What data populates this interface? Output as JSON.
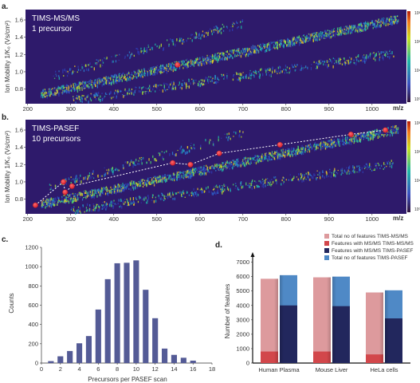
{
  "panels": {
    "a": {
      "letter": "a.",
      "title": "TIMS-MS/MS",
      "subtitle": "1 precursor",
      "xlabel": "m/z",
      "ylabel": "Ion Mobility 1/K₀ (Vs/cm²)",
      "x_ticks": [
        200,
        300,
        400,
        500,
        600,
        700,
        800,
        900,
        1000
      ],
      "y_ticks": [
        0.8,
        1.0,
        1.2,
        1.4,
        1.6
      ],
      "xlim": [
        195,
        1080
      ],
      "ylim": [
        0.63,
        1.72
      ],
      "colorbar_ticks": [
        "10³",
        "10²",
        "10¹",
        "10⁰"
      ],
      "precursors": [
        {
          "mz": 548,
          "im": 1.08
        }
      ]
    },
    "b": {
      "letter": "b.",
      "title": "TIMS-PASEF",
      "subtitle": "10 precursors",
      "xlabel": "m/z",
      "ylabel": "Ion Mobility 1/K₀ (Vs/cm²)",
      "x_ticks": [
        200,
        300,
        400,
        500,
        600,
        700,
        800,
        900,
        1000
      ],
      "y_ticks": [
        0.8,
        1.0,
        1.2,
        1.4,
        1.6
      ],
      "xlim": [
        195,
        1080
      ],
      "ylim": [
        0.63,
        1.72
      ],
      "colorbar_ticks": [
        "10³",
        "10²",
        "10¹",
        "10⁰"
      ],
      "precursors": [
        {
          "mz": 218,
          "im": 0.73
        },
        {
          "mz": 283,
          "im": 1.0
        },
        {
          "mz": 287,
          "im": 0.88
        },
        {
          "mz": 303,
          "im": 0.95
        },
        {
          "mz": 537,
          "im": 1.22
        },
        {
          "mz": 578,
          "im": 1.2
        },
        {
          "mz": 645,
          "im": 1.33
        },
        {
          "mz": 786,
          "im": 1.43
        },
        {
          "mz": 951,
          "im": 1.55
        },
        {
          "mz": 1031,
          "im": 1.6
        }
      ]
    },
    "c": {
      "letter": "c.",
      "type": "bar",
      "xlabel": "Precursors per PASEF scan",
      "ylabel": "Counts",
      "x": [
        1,
        2,
        3,
        4,
        5,
        6,
        7,
        8,
        9,
        10,
        11,
        12,
        13,
        14,
        15,
        16
      ],
      "values": [
        20,
        70,
        125,
        205,
        280,
        555,
        870,
        1035,
        1040,
        1065,
        760,
        465,
        150,
        85,
        55,
        25
      ],
      "x_ticks": [
        0,
        2,
        4,
        6,
        8,
        10,
        12,
        14,
        16,
        18
      ],
      "y_ticks": [
        0,
        200,
        400,
        600,
        800,
        1000,
        1200
      ],
      "xlim": [
        0,
        18
      ],
      "ylim": [
        0,
        1200
      ],
      "color": "#545b96"
    },
    "d": {
      "letter": "d.",
      "type": "bar",
      "ylabel": "Number of features",
      "categories": [
        "Human Plasma",
        "Mouse Liver",
        "HeLa cells"
      ],
      "series": [
        {
          "name": "Total no of features TIMS-MS/MS",
          "values": [
            5850,
            5950,
            4900
          ],
          "color": "#dd9a9d"
        },
        {
          "name": "Features with MS/MS TIMS-MS/MS",
          "values": [
            800,
            800,
            600
          ],
          "color": "#d2474b"
        },
        {
          "name": "Total no of features TIMS-PASEF",
          "values": [
            6100,
            6000,
            5050
          ],
          "color": "#4f89c6"
        },
        {
          "name": "Features with MS/MS TIMS-PASEF",
          "values": [
            4000,
            3950,
            3100
          ],
          "color": "#22275d"
        }
      ],
      "y_ticks": [
        0,
        1000,
        2000,
        3000,
        4000,
        5000,
        6000,
        7000
      ],
      "ylim": [
        0,
        7200
      ]
    }
  }
}
